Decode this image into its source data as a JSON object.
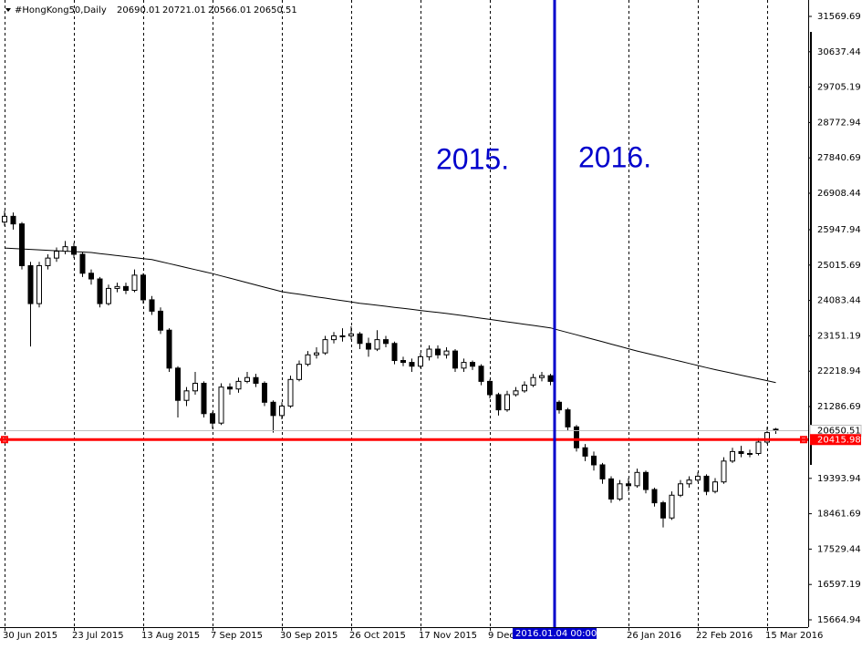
{
  "chart_data": {
    "type": "candlestick",
    "symbol": "#HongKong50,Daily",
    "header_values": [
      20690.01,
      20721.01,
      20566.01,
      20650.51
    ],
    "annotations": [
      "2015.",
      "2016."
    ],
    "cursor_label": "2016.01.04 00:00",
    "price_line": 20650.51,
    "level_line": 20415.98,
    "ylim": [
      15473,
      32002
    ],
    "yticks": [
      31569.69,
      30637.44,
      29705.19,
      28772.94,
      27840.69,
      26908.44,
      25947.94,
      25015.69,
      24083.44,
      23151.19,
      22218.94,
      21286.69,
      19393.94,
      18461.69,
      17529.44,
      16597.19,
      15664.94
    ],
    "up_color": "#ffffff",
    "down_color": "#000000",
    "outline_color": "#000000",
    "ma_color": "#000000",
    "level_color": "#ff0000",
    "marker_color": "#0000cc",
    "grid": true,
    "categories": [
      "30 Jun 2015",
      null,
      null,
      null,
      null,
      null,
      null,
      null,
      "23 Jul 2015",
      null,
      null,
      null,
      null,
      null,
      null,
      null,
      "13 Aug 2015",
      null,
      null,
      null,
      null,
      null,
      null,
      null,
      "7 Sep 2015",
      null,
      null,
      null,
      null,
      null,
      null,
      null,
      "30 Sep 2015",
      null,
      null,
      null,
      null,
      null,
      null,
      null,
      "26 Oct 2015",
      null,
      null,
      null,
      null,
      null,
      null,
      null,
      "17 Nov 2015",
      null,
      null,
      null,
      null,
      null,
      null,
      null,
      "9 Dec 2015",
      null,
      null,
      null,
      null,
      null,
      null,
      null,
      null,
      null,
      null,
      null,
      null,
      null,
      null,
      null,
      "26 Jan 2016",
      null,
      null,
      null,
      null,
      null,
      null,
      null,
      "22 Feb 2016",
      null,
      null,
      null,
      null,
      null,
      null,
      null,
      "15 Mar 2016",
      null
    ],
    "open": [
      26150,
      26300,
      26100,
      25000,
      24000,
      25000,
      25200,
      25380,
      25500,
      25300,
      24800,
      24650,
      24000,
      24400,
      24450,
      24350,
      24750,
      24100,
      23800,
      23300,
      22300,
      21450,
      21700,
      21900,
      21100,
      20850,
      21800,
      21750,
      21950,
      22050,
      21900,
      21400,
      21050,
      21300,
      22000,
      22400,
      22650,
      22700,
      23050,
      23150,
      23150,
      23200,
      22950,
      22800,
      23050,
      22950,
      22500,
      22450,
      22350,
      22600,
      22800,
      22650,
      22750,
      22300,
      22450,
      22350,
      21950,
      21600,
      21200,
      21600,
      21700,
      21850,
      22050,
      22100,
      21400,
      21200,
      20750,
      20200,
      19980,
      19750,
      19380,
      18850,
      19250,
      19200,
      19550,
      19100,
      18750,
      18350,
      18950,
      19250,
      19350,
      19450,
      19050,
      19300,
      19850,
      20100,
      20050,
      20050,
      20350,
      20690.01
    ],
    "high": [
      26450,
      26400,
      26150,
      25100,
      25100,
      25300,
      25480,
      25650,
      25600,
      25350,
      24900,
      24700,
      24500,
      24550,
      24550,
      24900,
      24800,
      24200,
      23900,
      23350,
      22350,
      21800,
      22200,
      21950,
      21150,
      21900,
      21900,
      22050,
      22200,
      22150,
      21950,
      21450,
      21400,
      22100,
      22500,
      22750,
      22850,
      23150,
      23250,
      23350,
      23400,
      23250,
      23100,
      23300,
      23150,
      23000,
      22600,
      22550,
      22700,
      22900,
      22900,
      22850,
      22800,
      22550,
      22500,
      22400,
      22000,
      21650,
      21700,
      21800,
      21950,
      22150,
      22200,
      22150,
      21450,
      21250,
      20800,
      20300,
      20100,
      19800,
      19450,
      19350,
      19400,
      19650,
      19600,
      19150,
      18800,
      19050,
      19350,
      19450,
      19550,
      19500,
      19400,
      19950,
      20200,
      20250,
      20150,
      20450,
      20750,
      20721.01
    ],
    "low": [
      26050,
      25950,
      24900,
      22870,
      23900,
      24900,
      25100,
      25300,
      25200,
      24700,
      24500,
      23900,
      23950,
      24300,
      24250,
      24300,
      24000,
      23700,
      23200,
      22200,
      21000,
      21300,
      21600,
      21000,
      20700,
      20800,
      21600,
      21650,
      21900,
      21800,
      21300,
      20600,
      20950,
      21250,
      21950,
      22350,
      22550,
      22650,
      22950,
      23000,
      23050,
      22800,
      22600,
      22750,
      22850,
      22400,
      22350,
      22200,
      22300,
      22500,
      22550,
      22550,
      22200,
      22200,
      22250,
      21850,
      21500,
      21050,
      21150,
      21550,
      21650,
      21800,
      21950,
      21850,
      21100,
      20650,
      20100,
      19850,
      19600,
      19250,
      18750,
      18800,
      19050,
      19150,
      19000,
      18650,
      18100,
      18300,
      18900,
      19150,
      19300,
      18950,
      19000,
      19250,
      19800,
      19950,
      19950,
      20000,
      20300,
      20566.01
    ],
    "close": [
      26300,
      26100,
      25000,
      24000,
      25000,
      25200,
      25380,
      25500,
      25300,
      24800,
      24650,
      24000,
      24400,
      24450,
      24350,
      24750,
      24100,
      23800,
      23300,
      22300,
      21450,
      21700,
      21900,
      21100,
      20850,
      21800,
      21750,
      21950,
      22050,
      21900,
      21400,
      21050,
      21300,
      22000,
      22400,
      22650,
      22700,
      23050,
      23150,
      23150,
      23200,
      22950,
      22800,
      23050,
      22950,
      22500,
      22450,
      22350,
      22600,
      22800,
      22650,
      22750,
      22300,
      22450,
      22350,
      21950,
      21600,
      21200,
      21600,
      21700,
      21850,
      22050,
      22100,
      21950,
      21200,
      20750,
      20200,
      19980,
      19750,
      19380,
      18850,
      19250,
      19200,
      19550,
      19100,
      18750,
      18350,
      18950,
      19250,
      19350,
      19450,
      19050,
      19300,
      19850,
      20100,
      20050,
      20050,
      20350,
      20600,
      20650.51
    ],
    "ma": [
      25466,
      25454,
      25442,
      25430,
      25418,
      25406,
      25394,
      25382,
      25370,
      25358,
      25346,
      25319,
      25293,
      25266,
      25240,
      25213,
      25187,
      25160,
      25107,
      25054,
      25001,
      24948,
      24896,
      24843,
      24790,
      24730,
      24671,
      24611,
      24552,
      24492,
      24432,
      24373,
      24313,
      24279,
      24246,
      24212,
      24178,
      24145,
      24111,
      24077,
      24044,
      24010,
      23983,
      23956,
      23929,
      23902,
      23875,
      23848,
      23820,
      23793,
      23766,
      23739,
      23712,
      23680,
      23648,
      23616,
      23584,
      23552,
      23520,
      23488,
      23456,
      23424,
      23392,
      23360,
      23299,
      23238,
      23177,
      23116,
      23055,
      22994,
      22933,
      22872,
      22811,
      22750,
      22696,
      22641,
      22587,
      22532,
      22478,
      22423,
      22369,
      22314,
      22260,
      22211,
      22163,
      22114,
      22066,
      22017,
      21969,
      21920
    ]
  }
}
